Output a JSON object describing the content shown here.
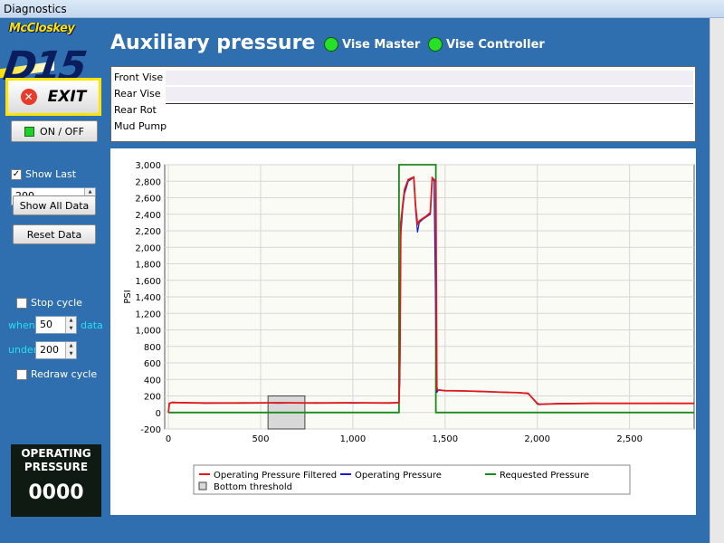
{
  "window": {
    "title": "Diagnostics"
  },
  "logo": {
    "brand": "McCloskey",
    "model": "D15"
  },
  "sidebar": {
    "exit_label": "EXIT",
    "onoff_label": "ON / OFF",
    "show_last_label": "Show Last",
    "show_last_checked": true,
    "show_last_value": "200",
    "show_all_label": "Show All Data",
    "reset_label": "Reset Data",
    "stop_cycle_label": "Stop cycle",
    "stop_cycle_checked": false,
    "when_label": "when",
    "when_value": "50",
    "data_label": "data",
    "under_label": "under",
    "under_value": "200",
    "redraw_label": "Redraw cycle",
    "redraw_checked": false,
    "op_label_line1": "OPERATING",
    "op_label_line2": "PRESSURE",
    "op_value": "0000"
  },
  "header": {
    "title": "Auxiliary pressure",
    "indicators": [
      {
        "label": "Vise Master",
        "state": "on",
        "color": "#28e028"
      },
      {
        "label": "Vise Controller",
        "state": "on",
        "color": "#28e028"
      }
    ]
  },
  "sensors": [
    {
      "label": "Front Vise"
    },
    {
      "label": "Rear Vise"
    },
    {
      "label": "Rear Rot"
    },
    {
      "label": "Mud Pump"
    }
  ],
  "colors": {
    "filtered": "#e01a1a",
    "operating": "#1a1ad0",
    "requested": "#1a8a1a",
    "threshold": "#d8d8d8"
  },
  "chart_data": {
    "type": "line",
    "xlabel": "",
    "ylabel": "PSI",
    "xlim": [
      -20,
      2850
    ],
    "ylim": [
      -200,
      3000
    ],
    "xticks": [
      0,
      500,
      1000,
      1500,
      2000,
      2500
    ],
    "xtick_labels": [
      "0",
      "500",
      "1,000",
      "1,500",
      "2,000",
      "2,500"
    ],
    "yticks": [
      -200,
      0,
      200,
      400,
      600,
      800,
      1000,
      1200,
      1400,
      1600,
      1800,
      2000,
      2200,
      2400,
      2600,
      2800,
      3000
    ],
    "ytick_labels": [
      "-200",
      "0",
      "200",
      "400",
      "600",
      "800",
      "1,000",
      "1,200",
      "1,400",
      "1,600",
      "1,800",
      "2,000",
      "2,200",
      "2,400",
      "2,600",
      "2,800",
      "3,000"
    ],
    "grid": true,
    "legend_position": "bottom",
    "series": [
      {
        "name": "Operating Pressure Filtered",
        "x": [
          0,
          5,
          20,
          200,
          400,
          600,
          800,
          1000,
          1200,
          1250,
          1255,
          1260,
          1270,
          1280,
          1300,
          1320,
          1330,
          1340,
          1350,
          1360,
          1380,
          1400,
          1420,
          1430,
          1440,
          1450,
          1455,
          1460,
          1470,
          1500,
          1600,
          1700,
          1800,
          1900,
          1950,
          2000,
          2010,
          2100,
          2300,
          2500,
          2700,
          2850
        ],
        "y": [
          0,
          110,
          120,
          115,
          115,
          118,
          115,
          118,
          115,
          120,
          700,
          2300,
          2500,
          2700,
          2820,
          2840,
          2850,
          2500,
          2280,
          2320,
          2350,
          2380,
          2420,
          2840,
          2820,
          2800,
          300,
          270,
          270,
          265,
          260,
          255,
          245,
          240,
          230,
          110,
          100,
          105,
          110,
          110,
          110,
          110
        ]
      },
      {
        "name": "Operating Pressure",
        "x": [
          0,
          5,
          20,
          200,
          400,
          600,
          800,
          1000,
          1200,
          1250,
          1255,
          1260,
          1270,
          1280,
          1300,
          1320,
          1330,
          1340,
          1350,
          1360,
          1380,
          1400,
          1420,
          1430,
          1440,
          1450,
          1455,
          1460,
          1470,
          1500,
          1600,
          1700,
          1800,
          1900,
          1950,
          2000,
          2010,
          2100,
          2300,
          2500,
          2700,
          2850
        ],
        "y": [
          0,
          105,
          125,
          110,
          118,
          112,
          118,
          112,
          118,
          118,
          400,
          2150,
          2450,
          2650,
          2800,
          2830,
          2850,
          2450,
          2180,
          2300,
          2340,
          2370,
          2400,
          2850,
          2800,
          1050,
          240,
          260,
          275,
          260,
          262,
          250,
          248,
          238,
          235,
          100,
          95,
          108,
          112,
          108,
          112,
          108
        ]
      },
      {
        "name": "Requested Pressure",
        "x": [
          0,
          1250,
          1250,
          1450,
          1450,
          2850
        ],
        "y": [
          0,
          0,
          3000,
          3000,
          0,
          0
        ]
      }
    ],
    "regions": [
      {
        "name": "Bottom threshold",
        "x0": 540,
        "x1": 740,
        "y": 200
      }
    ]
  }
}
